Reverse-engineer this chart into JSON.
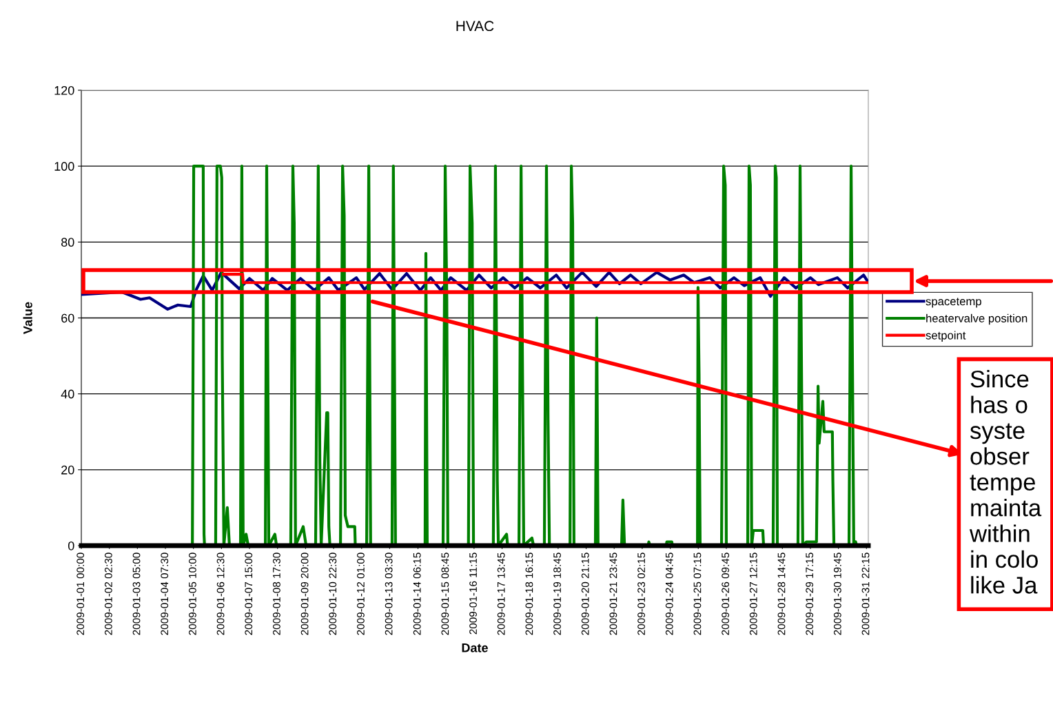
{
  "chart_data": {
    "type": "line",
    "title": "HVAC",
    "xlabel": "Date",
    "ylabel": "Value",
    "xlim": [
      "2009-01-01T00:00",
      "2009-02-01T00:00"
    ],
    "ylim": [
      0,
      120
    ],
    "yticks": [
      0,
      20,
      40,
      60,
      80,
      100,
      120
    ],
    "xticks": [
      {
        "value": "2009-01-01T00:00",
        "label": "2009-01-01 00:00"
      },
      {
        "value": "2009-01-02T02:30",
        "label": "2009-01-02 02:30"
      },
      {
        "value": "2009-01-03T05:00",
        "label": "2009-01-03 05:00"
      },
      {
        "value": "2009-01-04T07:30",
        "label": "2009-01-04 07:30"
      },
      {
        "value": "2009-01-05T10:00",
        "label": "2009-01-05 10:00"
      },
      {
        "value": "2009-01-06T12:30",
        "label": "2009-01-06 12:30"
      },
      {
        "value": "2009-01-07T15:00",
        "label": "2009-01-07 15:00"
      },
      {
        "value": "2009-01-08T17:30",
        "label": "2009-01-08 17:30"
      },
      {
        "value": "2009-01-09T20:00",
        "label": "2009-01-09 20:00"
      },
      {
        "value": "2009-01-10T22:30",
        "label": "2009-01-10 22:30"
      },
      {
        "value": "2009-01-12T01:00",
        "label": "2009-01-12 01:00"
      },
      {
        "value": "2009-01-13T03:30",
        "label": "2009-01-13 03:30"
      },
      {
        "value": "2009-01-14T06:15",
        "label": "2009-01-14 06:15"
      },
      {
        "value": "2009-01-15T08:45",
        "label": "2009-01-15 08:45"
      },
      {
        "value": "2009-01-16T11:15",
        "label": "2009-01-16 11:15"
      },
      {
        "value": "2009-01-17T13:45",
        "label": "2009-01-17 13:45"
      },
      {
        "value": "2009-01-18T16:15",
        "label": "2009-01-18 16:15"
      },
      {
        "value": "2009-01-19T18:45",
        "label": "2009-01-19 18:45"
      },
      {
        "value": "2009-01-20T21:15",
        "label": "2009-01-20 21:15"
      },
      {
        "value": "2009-01-21T23:45",
        "label": "2009-01-21 23:45"
      },
      {
        "value": "2009-01-23T02:15",
        "label": "2009-01-23 02:15"
      },
      {
        "value": "2009-01-24T04:45",
        "label": "2009-01-24 04:45"
      },
      {
        "value": "2009-01-25T07:15",
        "label": "2009-01-25 07:15"
      },
      {
        "value": "2009-01-26T09:45",
        "label": "2009-01-26 09:45"
      },
      {
        "value": "2009-01-27T12:15",
        "label": "2009-01-27 12:15"
      },
      {
        "value": "2009-01-28T14:45",
        "label": "2009-01-28 14:45"
      },
      {
        "value": "2009-01-29T17:15",
        "label": "2009-01-29 17:15"
      },
      {
        "value": "2009-01-30T19:45",
        "label": "2009-01-30 19:45"
      },
      {
        "value": "2009-01-31T22:15",
        "label": "2009-01-31 22:15"
      }
    ],
    "grid": "y",
    "legend": "right",
    "marker": "none",
    "line_style": "solid",
    "annotations": [
      "Since\nhas o\nsyste\nobser\ntempe\nmainta\nwithin\nin colo\nlike Ja"
    ],
    "series": [
      {
        "name": "spacetemp",
        "color": "#000080",
        "x": [
          "2009-01-01T00:00",
          "2009-01-02T14:30",
          "2009-01-03T08:00",
          "2009-01-03T16:30",
          "2009-01-04T09:30",
          "2009-01-04T19:15",
          "2009-01-05T07:30",
          "2009-01-05T12:45",
          "2009-01-05T19:15",
          "2009-01-06T03:45",
          "2009-01-06T12:15",
          "2009-01-07T05:15",
          "2009-01-07T15:00",
          "2009-01-08T04:00",
          "2009-01-08T12:30",
          "2009-01-09T02:45",
          "2009-01-09T15:15",
          "2009-01-10T04:15",
          "2009-01-10T18:00",
          "2009-01-11T03:00",
          "2009-01-11T20:00",
          "2009-01-12T03:45",
          "2009-01-12T18:00",
          "2009-01-13T05:45",
          "2009-01-13T19:30",
          "2009-01-14T08:30",
          "2009-01-14T18:15",
          "2009-01-15T04:00",
          "2009-01-15T13:15",
          "2009-01-16T04:15",
          "2009-01-16T16:00",
          "2009-01-17T03:30",
          "2009-01-17T14:45",
          "2009-01-18T01:45",
          "2009-01-18T13:30",
          "2009-01-19T02:00",
          "2009-01-19T17:00",
          "2009-01-20T02:45",
          "2009-01-20T17:30",
          "2009-01-21T06:45",
          "2009-01-21T19:00",
          "2009-01-22T04:45",
          "2009-01-22T15:15",
          "2009-01-23T01:00",
          "2009-01-23T16:00",
          "2009-01-24T04:30",
          "2009-01-24T17:30",
          "2009-01-25T03:15",
          "2009-01-25T18:15",
          "2009-01-26T04:00",
          "2009-01-26T17:00",
          "2009-01-27T02:45",
          "2009-01-27T17:45",
          "2009-01-28T03:30",
          "2009-01-28T16:30",
          "2009-01-29T03:30",
          "2009-01-29T17:15",
          "2009-01-30T01:00",
          "2009-01-30T18:45",
          "2009-01-31T04:30",
          "2009-01-31T19:30",
          "2009-01-31T23:45"
        ],
        "values": [
          66.2,
          66.8,
          64.9,
          65.3,
          62.3,
          63.4,
          63.0,
          67.5,
          71.1,
          67.3,
          72.0,
          67.7,
          70.4,
          67.3,
          70.4,
          67.3,
          70.4,
          67.3,
          70.6,
          67.3,
          70.6,
          67.5,
          71.7,
          67.5,
          71.7,
          67.3,
          70.6,
          67.3,
          70.6,
          67.3,
          71.3,
          67.9,
          70.6,
          67.9,
          70.6,
          67.9,
          71.3,
          67.9,
          72.0,
          68.3,
          72.0,
          69.0,
          71.3,
          69.0,
          72.0,
          70.0,
          71.3,
          69.3,
          70.6,
          67.9,
          70.6,
          68.5,
          70.6,
          65.7,
          70.6,
          67.9,
          70.6,
          68.8,
          70.6,
          67.9,
          71.3,
          69.5
        ]
      },
      {
        "name": "heatervalve position",
        "color": "#008000",
        "x": [
          "2009-01-01T00:00",
          "2009-01-05T09:00",
          "2009-01-05T10:15",
          "2009-01-05T19:15",
          "2009-01-05T20:00",
          "2009-01-05T20:30",
          "2009-01-06T07:00",
          "2009-01-06T08:15",
          "2009-01-06T11:30",
          "2009-01-06T12:45",
          "2009-01-06T13:15",
          "2009-01-06T14:45",
          "2009-01-06T18:00",
          "2009-01-06T20:00",
          "2009-01-07T06:30",
          "2009-01-07T07:45",
          "2009-01-07T09:00",
          "2009-01-07T11:45",
          "2009-01-07T13:45",
          "2009-01-08T06:00",
          "2009-01-08T07:15",
          "2009-01-08T09:15",
          "2009-01-08T15:00",
          "2009-01-08T16:30",
          "2009-01-09T06:00",
          "2009-01-09T08:00",
          "2009-01-09T09:15",
          "2009-01-09T10:30",
          "2009-01-09T17:45",
          "2009-01-09T20:30",
          "2009-01-10T05:30",
          "2009-01-10T06:45",
          "2009-01-10T08:00",
          "2009-01-10T09:30",
          "2009-01-10T10:45",
          "2009-01-10T16:00",
          "2009-01-10T17:00",
          "2009-01-10T18:00",
          "2009-01-10T19:00",
          "2009-01-11T05:00",
          "2009-01-11T07:00",
          "2009-01-11T08:30",
          "2009-01-11T09:30",
          "2009-01-11T12:00",
          "2009-01-11T18:30",
          "2009-01-11T19:00",
          "2009-01-12T05:45",
          "2009-01-12T07:45",
          "2009-01-12T09:30",
          "2009-01-13T05:45",
          "2009-01-13T07:00",
          "2009-01-13T09:00",
          "2009-01-14T13:00",
          "2009-01-14T13:45",
          "2009-01-14T15:00",
          "2009-01-15T06:00",
          "2009-01-15T08:00",
          "2009-01-15T09:30",
          "2009-01-15T10:30",
          "2009-01-16T06:00",
          "2009-01-16T07:30",
          "2009-01-16T09:30",
          "2009-01-16T10:45",
          "2009-01-17T05:30",
          "2009-01-17T07:30",
          "2009-01-17T09:15",
          "2009-01-17T10:15",
          "2009-01-17T18:00",
          "2009-01-17T19:00",
          "2009-01-18T05:45",
          "2009-01-18T07:45",
          "2009-01-18T10:15",
          "2009-01-18T18:00",
          "2009-01-18T19:30",
          "2009-01-19T05:45",
          "2009-01-19T07:45",
          "2009-01-19T09:15",
          "2009-01-19T10:30",
          "2009-01-20T06:00",
          "2009-01-20T07:15",
          "2009-01-20T08:30",
          "2009-01-20T09:45",
          "2009-01-21T06:00",
          "2009-01-21T07:15",
          "2009-01-21T08:30",
          "2009-01-22T06:45",
          "2009-01-22T08:00",
          "2009-01-22T09:30",
          "2009-01-23T08:00",
          "2009-01-23T08:30",
          "2009-01-23T09:30",
          "2009-01-24T01:00",
          "2009-01-24T01:30",
          "2009-01-24T06:15",
          "2009-01-24T06:45",
          "2009-01-25T06:30",
          "2009-01-25T07:00",
          "2009-01-25T08:00",
          "2009-01-25T09:00",
          "2009-01-26T05:15",
          "2009-01-26T07:15",
          "2009-01-26T08:45",
          "2009-01-26T09:45",
          "2009-01-27T06:00",
          "2009-01-27T07:15",
          "2009-01-27T08:30",
          "2009-01-27T09:45",
          "2009-01-27T11:15",
          "2009-01-27T20:15",
          "2009-01-27T21:00",
          "2009-01-28T06:00",
          "2009-01-28T08:00",
          "2009-01-28T09:00",
          "2009-01-28T10:00",
          "2009-01-29T05:30",
          "2009-01-29T06:30",
          "2009-01-29T07:30",
          "2009-01-29T09:00",
          "2009-01-29T10:00",
          "2009-01-29T13:30",
          "2009-01-29T23:00",
          "2009-01-30T00:30",
          "2009-01-30T01:30",
          "2009-01-30T05:00",
          "2009-01-30T06:15",
          "2009-01-30T14:00",
          "2009-01-30T14:30",
          "2009-01-30T15:30",
          "2009-01-31T05:45",
          "2009-01-31T07:45",
          "2009-01-31T09:30",
          "2009-01-31T10:15",
          "2009-01-31T12:00",
          "2009-01-31T13:00",
          "2009-01-31T23:45"
        ],
        "values": [
          0,
          0,
          100,
          100,
          3,
          0,
          0,
          100,
          100,
          97,
          50,
          0,
          10,
          0,
          0,
          100,
          0,
          3,
          0,
          0,
          100,
          0,
          3,
          0,
          0,
          100,
          85,
          0,
          5,
          0,
          0,
          50,
          100,
          22,
          0,
          35,
          35,
          5,
          0,
          0,
          100,
          87,
          8,
          5,
          5,
          0,
          0,
          100,
          0,
          0,
          100,
          0,
          0,
          77,
          0,
          0,
          100,
          65,
          0,
          0,
          100,
          85,
          0,
          0,
          100,
          17,
          0,
          3,
          0,
          0,
          100,
          0,
          2,
          0,
          0,
          100,
          33,
          0,
          0,
          100,
          85,
          0,
          0,
          60,
          0,
          0,
          12,
          0,
          0,
          1,
          0,
          0,
          1,
          1,
          0,
          0,
          68,
          45,
          0,
          0,
          100,
          95,
          0,
          0,
          100,
          95,
          0,
          4,
          4,
          0,
          0,
          100,
          97,
          0,
          0,
          48,
          100,
          40,
          0,
          1,
          1,
          42,
          27,
          38,
          30,
          30,
          17,
          0,
          0,
          100,
          28,
          0,
          1,
          0,
          0
        ]
      },
      {
        "name": "setpoint",
        "color": "#ff0000",
        "x": [
          "2009-01-06T14:15",
          "2009-01-07T08:30",
          "2009-01-07T09:00",
          "2009-01-31T23:45"
        ],
        "values": [
          71.5,
          71.5,
          69.3,
          69.3
        ]
      }
    ]
  }
}
